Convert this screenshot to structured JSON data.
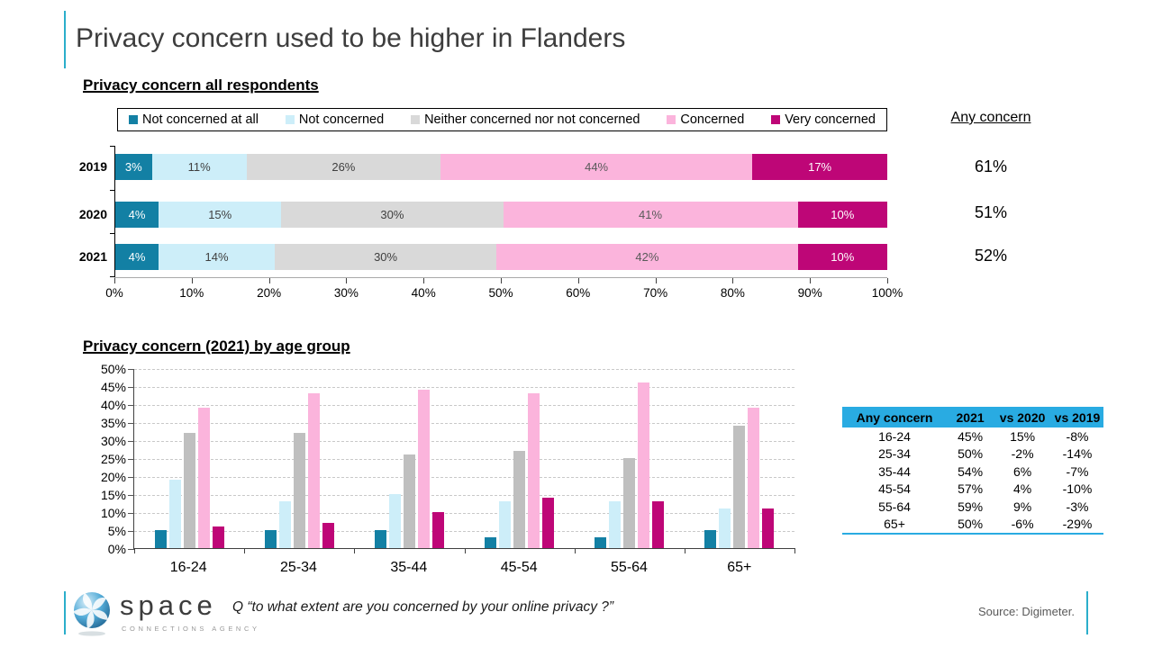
{
  "slide": {
    "title": "Privacy concern used to be higher in Flanders",
    "accent_color": "#2BAECB"
  },
  "chart_data": [
    {
      "type": "bar",
      "variant": "horizontal-stacked",
      "title": "Privacy concern all respondents",
      "categories": [
        "2019",
        "2020",
        "2021"
      ],
      "series": [
        {
          "name": "Not concerned at all",
          "color": "#1380A4",
          "label_color": "#ffffff",
          "values": [
            3,
            4,
            4
          ]
        },
        {
          "name": "Not concerned",
          "color": "#CDEEF9",
          "label_color": "#3f3f3f",
          "values": [
            11,
            15,
            14
          ]
        },
        {
          "name": "Neither concerned nor not concerned",
          "color": "#D9D9D9",
          "label_color": "#3f3f3f",
          "values": [
            26,
            30,
            30
          ]
        },
        {
          "name": "Concerned",
          "color": "#FBB4DC",
          "label_color": "#5a5a5a",
          "values": [
            44,
            41,
            42
          ]
        },
        {
          "name": "Very concerned",
          "color": "#BE0677",
          "label_color": "#ffffff",
          "values": [
            17,
            10,
            10
          ]
        }
      ],
      "xlim": [
        0,
        100
      ],
      "x_ticks": [
        "0%",
        "10%",
        "20%",
        "30%",
        "40%",
        "50%",
        "60%",
        "70%",
        "80%",
        "90%",
        "100%"
      ],
      "legend_position": "top",
      "annotation": {
        "heading": "Any concern",
        "values": [
          "61%",
          "51%",
          "52%"
        ]
      }
    },
    {
      "type": "bar",
      "variant": "grouped-vertical",
      "title": "Privacy concern (2021) by age group",
      "categories": [
        "16-24",
        "25-34",
        "35-44",
        "45-54",
        "55-64",
        "65+"
      ],
      "series": [
        {
          "name": "Not concerned at all",
          "color": "#1380A4",
          "values": [
            5,
            5,
            5,
            3,
            3,
            5
          ]
        },
        {
          "name": "Not concerned",
          "color": "#CDEEF9",
          "values": [
            19,
            13,
            15,
            13,
            13,
            11
          ]
        },
        {
          "name": "Neither concerned nor not concerned",
          "color": "#BFBFBF",
          "values": [
            32,
            32,
            26,
            27,
            25,
            34
          ]
        },
        {
          "name": "Concerned",
          "color": "#FBB4DC",
          "values": [
            39,
            43,
            44,
            43,
            46,
            39
          ]
        },
        {
          "name": "Very concerned",
          "color": "#BE0677",
          "values": [
            6,
            7,
            10,
            14,
            13,
            11
          ]
        }
      ],
      "ylim": [
        0,
        50
      ],
      "y_tick_step": 5,
      "grid": "dashed-horizontal"
    },
    {
      "type": "table",
      "header_color": "#29ABE2",
      "headers": [
        "Any concern",
        "2021",
        "vs 2020",
        "vs 2019"
      ],
      "rows": [
        [
          "16-24",
          "45%",
          "15%",
          "-8%"
        ],
        [
          "25-34",
          "50%",
          "-2%",
          "-14%"
        ],
        [
          "35-44",
          "54%",
          "6%",
          "-7%"
        ],
        [
          "45-54",
          "57%",
          "4%",
          "-10%"
        ],
        [
          "55-64",
          "59%",
          "9%",
          "-3%"
        ],
        [
          "65+",
          "50%",
          "-6%",
          "-29%"
        ]
      ]
    }
  ],
  "footer": {
    "logo_text": "space",
    "logo_subtext": "CONNECTIONS AGENCY",
    "logo_icon": "space-sphere-logo",
    "question": "Q “to what extent are you concerned by your online privacy ?”",
    "source": "Source: Digimeter."
  }
}
